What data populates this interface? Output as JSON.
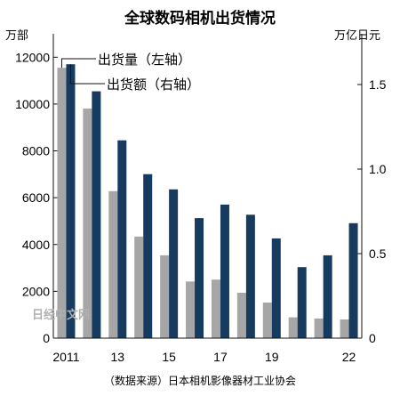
{
  "chart_data": {
    "type": "bar",
    "title": "全球数码相机出货情况",
    "left_axis_unit": "万部",
    "right_axis_unit": "万亿日元",
    "x": [
      2011,
      2012,
      2013,
      2014,
      2015,
      2016,
      2017,
      2018,
      2019,
      2020,
      2021,
      2022
    ],
    "x_tick_labels": [
      "2011",
      "",
      "13",
      "",
      "15",
      "",
      "17",
      "",
      "19",
      "",
      "",
      "22"
    ],
    "left_ylim": [
      0,
      13000
    ],
    "left_yticks": [
      "0",
      "2000",
      "4000",
      "6000",
      "8000",
      "10000",
      "12000"
    ],
    "right_ylim": [
      0,
      1.8
    ],
    "right_yticks": [
      "0",
      "0.5",
      "1.0",
      "1.5"
    ],
    "series": [
      {
        "name": "出货量（左轴）",
        "axis": "left",
        "color": "#a6a6a6",
        "values": [
          11550,
          9810,
          6280,
          4340,
          3540,
          2420,
          2500,
          1940,
          1520,
          890,
          840,
          800
        ]
      },
      {
        "name": "出货额（右轴）",
        "axis": "right",
        "color": "#173b5e",
        "values": [
          1.62,
          1.46,
          1.17,
          0.97,
          0.88,
          0.71,
          0.79,
          0.73,
          0.59,
          0.42,
          0.49,
          0.68
        ]
      }
    ],
    "legend_placement": "top-left",
    "grid": false,
    "source_note": "（数据来源）日本相机影像器材工业协会",
    "watermark": "日经中文网"
  }
}
